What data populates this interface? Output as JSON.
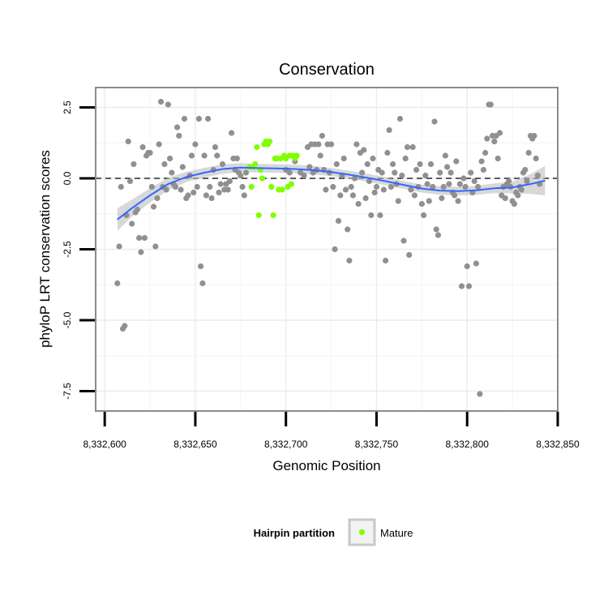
{
  "chart_data": {
    "type": "scatter",
    "title": "Conservation",
    "xlabel": "Genomic Position",
    "ylabel": "phyloP LRT conservation scores",
    "xlim": [
      8332595,
      8332850
    ],
    "ylim": [
      -8.2,
      3.2
    ],
    "x_ticks": [
      8332600,
      8332650,
      8332700,
      8332750,
      8332800,
      8332850
    ],
    "x_tick_labels": [
      "8,332,600",
      "8,332,650",
      "8,332,700",
      "8,332,750",
      "8,332,800",
      "8,332,850"
    ],
    "y_ticks": [
      2.5,
      0,
      -2.5,
      -5,
      -7.5
    ],
    "y_tick_labels": [
      "2.5",
      "0.0",
      "-2.5",
      "-5.0",
      "-7.5"
    ],
    "grid": true,
    "reference_line": {
      "y": 0,
      "style": "dashed"
    },
    "legend": {
      "title": "Hairpin partition",
      "placement": "bottom",
      "entries": [
        {
          "label": "Mature",
          "color": "#7fff00"
        }
      ]
    },
    "colors": {
      "other_points": "#909090",
      "mature_points": "#7fff00",
      "smooth_line": "#3366ff",
      "smooth_ribbon": "#bebebe"
    },
    "series": [
      {
        "color": "#909090",
        "points": [
          [
            8332607,
            -3.7
          ],
          [
            8332608,
            -2.4
          ],
          [
            8332609,
            -0.3
          ],
          [
            8332610,
            -5.3
          ],
          [
            8332611,
            -5.2
          ],
          [
            8332612,
            -1.3
          ],
          [
            8332613,
            1.3
          ],
          [
            8332614,
            -0.1
          ],
          [
            8332615,
            -1.6
          ],
          [
            8332616,
            0.5
          ],
          [
            8332617,
            -1.2
          ],
          [
            8332618,
            -1.1
          ],
          [
            8332619,
            -2.1
          ],
          [
            8332620,
            -2.6
          ],
          [
            8332621,
            1.1
          ],
          [
            8332622,
            -2.1
          ],
          [
            8332623,
            0.8
          ],
          [
            8332624,
            0.9
          ],
          [
            8332625,
            0.9
          ],
          [
            8332626,
            -0.3
          ],
          [
            8332627,
            -1.0
          ],
          [
            8332628,
            -2.4
          ],
          [
            8332629,
            -0.7
          ],
          [
            8332630,
            1.2
          ],
          [
            8332631,
            2.7
          ],
          [
            8332632,
            -0.3
          ],
          [
            8332633,
            0.5
          ],
          [
            8332634,
            -0.4
          ],
          [
            8332635,
            2.6
          ],
          [
            8332636,
            0.7
          ],
          [
            8332637,
            0.2
          ],
          [
            8332638,
            -0.2
          ],
          [
            8332639,
            -0.3
          ],
          [
            8332640,
            1.8
          ],
          [
            8332641,
            1.5
          ],
          [
            8332642,
            -0.4
          ],
          [
            8332643,
            0.4
          ],
          [
            8332644,
            2.1
          ],
          [
            8332645,
            -0.7
          ],
          [
            8332646,
            -0.6
          ],
          [
            8332647,
            0.1
          ],
          [
            8332648,
            0.8
          ],
          [
            8332649,
            -0.5
          ],
          [
            8332650,
            1.2
          ],
          [
            8332651,
            -0.3
          ],
          [
            8332652,
            2.1
          ],
          [
            8332653,
            -3.1
          ],
          [
            8332654,
            -3.7
          ],
          [
            8332655,
            0.8
          ],
          [
            8332656,
            -0.6
          ],
          [
            8332657,
            2.1
          ],
          [
            8332658,
            -0.3
          ],
          [
            8332659,
            -0.7
          ],
          [
            8332660,
            0.3
          ],
          [
            8332661,
            1.1
          ],
          [
            8332662,
            0.8
          ],
          [
            8332663,
            -0.5
          ],
          [
            8332664,
            -0.2
          ],
          [
            8332665,
            0.5
          ],
          [
            8332666,
            -0.4
          ],
          [
            8332667,
            -0.2
          ],
          [
            8332668,
            -0.4
          ],
          [
            8332669,
            -0.1
          ],
          [
            8332670,
            1.6
          ],
          [
            8332671,
            0.7
          ],
          [
            8332672,
            0.3
          ],
          [
            8332673,
            0.7
          ],
          [
            8332674,
            0.2
          ],
          [
            8332675,
            0.1
          ],
          [
            8332676,
            -0.3
          ],
          [
            8332677,
            -0.6
          ],
          [
            8332678,
            0.2
          ],
          [
            8332700,
            0.3
          ],
          [
            8332702,
            0.2
          ],
          [
            8332705,
            0.6
          ],
          [
            8332708,
            0.2
          ],
          [
            8332710,
            0.1
          ],
          [
            8332712,
            1.1
          ],
          [
            8332713,
            0.4
          ],
          [
            8332714,
            1.2
          ],
          [
            8332715,
            0.2
          ],
          [
            8332716,
            1.2
          ],
          [
            8332717,
            0.3
          ],
          [
            8332718,
            1.2
          ],
          [
            8332719,
            0.8
          ],
          [
            8332720,
            1.5
          ],
          [
            8332721,
            0.3
          ],
          [
            8332722,
            -0.4
          ],
          [
            8332723,
            1.2
          ],
          [
            8332724,
            0.2
          ],
          [
            8332725,
            1.2
          ],
          [
            8332726,
            -0.3
          ],
          [
            8332727,
            -2.5
          ],
          [
            8332728,
            0.5
          ],
          [
            8332729,
            -1.5
          ],
          [
            8332730,
            -0.6
          ],
          [
            8332731,
            0.1
          ],
          [
            8332732,
            0.7
          ],
          [
            8332733,
            -0.4
          ],
          [
            8332734,
            -1.8
          ],
          [
            8332735,
            -2.9
          ],
          [
            8332736,
            -0.3
          ],
          [
            8332737,
            -0.6
          ],
          [
            8332738,
            0.0
          ],
          [
            8332739,
            1.2
          ],
          [
            8332740,
            -0.9
          ],
          [
            8332741,
            0.9
          ],
          [
            8332742,
            0.2
          ],
          [
            8332743,
            1.0
          ],
          [
            8332744,
            -0.7
          ],
          [
            8332745,
            0.5
          ],
          [
            8332746,
            -0.1
          ],
          [
            8332747,
            -1.3
          ],
          [
            8332748,
            0.7
          ],
          [
            8332749,
            -0.5
          ],
          [
            8332750,
            -0.3
          ],
          [
            8332751,
            0.3
          ],
          [
            8332752,
            -1.3
          ],
          [
            8332753,
            0.2
          ],
          [
            8332754,
            -0.4
          ],
          [
            8332755,
            -2.9
          ],
          [
            8332756,
            0.9
          ],
          [
            8332757,
            1.7
          ],
          [
            8332758,
            -0.3
          ],
          [
            8332759,
            0.5
          ],
          [
            8332760,
            0.2
          ],
          [
            8332761,
            -0.2
          ],
          [
            8332762,
            -0.8
          ],
          [
            8332763,
            2.1
          ],
          [
            8332764,
            0.1
          ],
          [
            8332765,
            -2.2
          ],
          [
            8332766,
            0.7
          ],
          [
            8332767,
            1.1
          ],
          [
            8332768,
            -2.7
          ],
          [
            8332769,
            -0.4
          ],
          [
            8332770,
            1.1
          ],
          [
            8332771,
            -0.6
          ],
          [
            8332772,
            0.3
          ],
          [
            8332773,
            -0.3
          ],
          [
            8332774,
            0.5
          ],
          [
            8332775,
            -0.9
          ],
          [
            8332776,
            -1.3
          ],
          [
            8332777,
            0.1
          ],
          [
            8332778,
            -0.2
          ],
          [
            8332779,
            -0.8
          ],
          [
            8332780,
            0.5
          ],
          [
            8332781,
            -0.3
          ],
          [
            8332782,
            2.0
          ],
          [
            8332783,
            -1.8
          ],
          [
            8332784,
            -2.0
          ],
          [
            8332785,
            0.2
          ],
          [
            8332786,
            -0.7
          ],
          [
            8332787,
            -0.3
          ],
          [
            8332788,
            0.8
          ],
          [
            8332789,
            0.4
          ],
          [
            8332790,
            -0.2
          ],
          [
            8332791,
            0.2
          ],
          [
            8332792,
            -0.5
          ],
          [
            8332793,
            -0.6
          ],
          [
            8332794,
            0.6
          ],
          [
            8332795,
            -0.8
          ],
          [
            8332796,
            -0.2
          ],
          [
            8332797,
            -3.8
          ],
          [
            8332798,
            0.0
          ],
          [
            8332799,
            -0.3
          ],
          [
            8332800,
            -3.1
          ],
          [
            8332801,
            -3.8
          ],
          [
            8332802,
            0.2
          ],
          [
            8332803,
            -0.5
          ],
          [
            8332804,
            -0.1
          ],
          [
            8332805,
            -3.0
          ],
          [
            8332806,
            -0.3
          ],
          [
            8332807,
            -7.6
          ],
          [
            8332808,
            0.6
          ],
          [
            8332809,
            0.3
          ],
          [
            8332810,
            0.9
          ],
          [
            8332811,
            1.4
          ],
          [
            8332812,
            2.6
          ],
          [
            8332813,
            2.6
          ],
          [
            8332814,
            1.5
          ],
          [
            8332815,
            1.3
          ],
          [
            8332816,
            1.5
          ],
          [
            8332817,
            0.7
          ],
          [
            8332818,
            1.6
          ],
          [
            8332819,
            -0.6
          ],
          [
            8332820,
            -0.3
          ],
          [
            8332821,
            -0.7
          ],
          [
            8332822,
            -0.2
          ],
          [
            8332823,
            -0.1
          ],
          [
            8332824,
            -0.3
          ],
          [
            8332825,
            -0.8
          ],
          [
            8332826,
            -0.9
          ],
          [
            8332827,
            -0.5
          ],
          [
            8332828,
            -0.6
          ],
          [
            8332829,
            -0.3
          ],
          [
            8332830,
            -0.4
          ],
          [
            8332831,
            0.2
          ],
          [
            8332832,
            0.3
          ],
          [
            8332833,
            -0.1
          ],
          [
            8332834,
            0.9
          ],
          [
            8332835,
            1.5
          ],
          [
            8332836,
            1.4
          ],
          [
            8332837,
            1.5
          ],
          [
            8332838,
            0.7
          ],
          [
            8332839,
            0.1
          ],
          [
            8332840,
            -0.2
          ]
        ]
      },
      {
        "name": "Mature",
        "color": "#7fff00",
        "points": [
          [
            8332680,
            0.4
          ],
          [
            8332681,
            -0.3
          ],
          [
            8332682,
            0.4
          ],
          [
            8332683,
            0.5
          ],
          [
            8332684,
            1.1
          ],
          [
            8332685,
            -1.3
          ],
          [
            8332686,
            0.3
          ],
          [
            8332687,
            0.0
          ],
          [
            8332688,
            1.2
          ],
          [
            8332689,
            1.3
          ],
          [
            8332690,
            1.2
          ],
          [
            8332691,
            1.3
          ],
          [
            8332692,
            -0.3
          ],
          [
            8332693,
            -1.3
          ],
          [
            8332694,
            0.7
          ],
          [
            8332695,
            0.7
          ],
          [
            8332696,
            -0.4
          ],
          [
            8332697,
            0.7
          ],
          [
            8332698,
            -0.4
          ],
          [
            8332699,
            0.8
          ],
          [
            8332700,
            0.7
          ],
          [
            8332701,
            -0.3
          ],
          [
            8332702,
            0.8
          ],
          [
            8332703,
            -0.2
          ],
          [
            8332704,
            0.8
          ],
          [
            8332705,
            0.7
          ],
          [
            8332706,
            0.8
          ]
        ]
      }
    ],
    "smooth": {
      "x": [
        8332607,
        8332615,
        8332625,
        8332635,
        8332645,
        8332655,
        8332665,
        8332675,
        8332685,
        8332695,
        8332705,
        8332715,
        8332725,
        8332735,
        8332745,
        8332755,
        8332765,
        8332775,
        8332785,
        8332795,
        8332805,
        8332815,
        8332825,
        8332835,
        8332843
      ],
      "y": [
        -1.45,
        -1.05,
        -0.6,
        -0.2,
        0.05,
        0.2,
        0.33,
        0.38,
        0.36,
        0.35,
        0.33,
        0.29,
        0.22,
        0.13,
        0.02,
        -0.1,
        -0.23,
        -0.36,
        -0.43,
        -0.45,
        -0.42,
        -0.35,
        -0.32,
        -0.2,
        -0.08
      ],
      "lower": [
        -1.85,
        -1.35,
        -0.85,
        -0.42,
        -0.13,
        0.03,
        0.16,
        0.22,
        0.21,
        0.2,
        0.18,
        0.14,
        0.08,
        -0.01,
        -0.12,
        -0.24,
        -0.37,
        -0.5,
        -0.58,
        -0.6,
        -0.58,
        -0.52,
        -0.53,
        -0.55,
        -0.6
      ],
      "upper": [
        -1.05,
        -0.75,
        -0.35,
        0.02,
        0.23,
        0.37,
        0.5,
        0.54,
        0.51,
        0.5,
        0.48,
        0.44,
        0.36,
        0.27,
        0.16,
        0.04,
        -0.09,
        -0.22,
        -0.28,
        -0.3,
        -0.26,
        -0.18,
        -0.11,
        0.15,
        0.44
      ]
    }
  }
}
